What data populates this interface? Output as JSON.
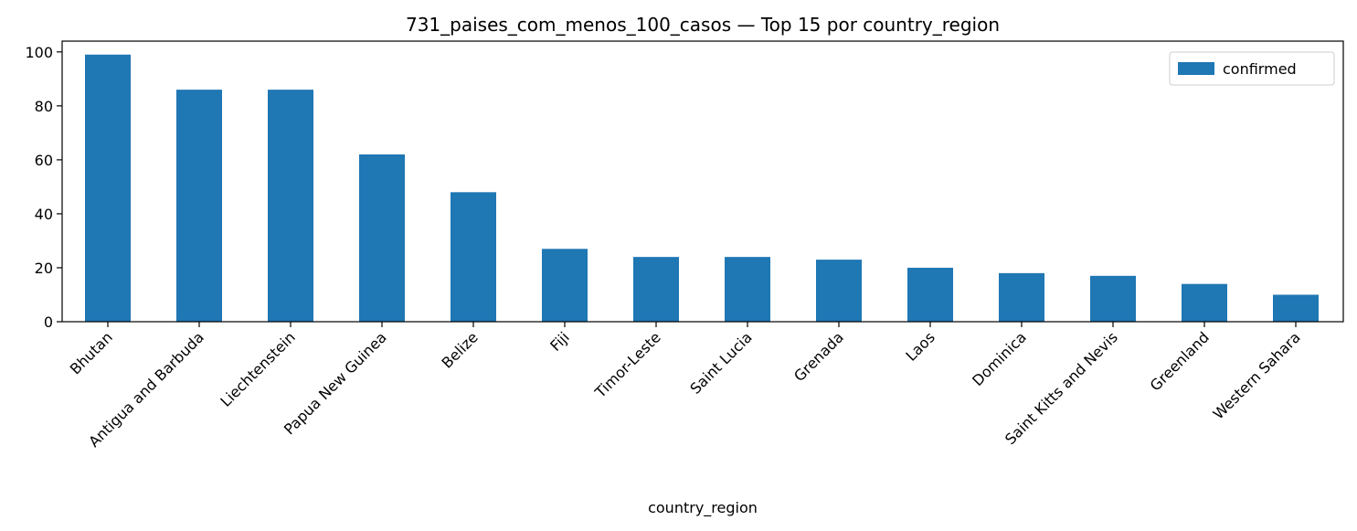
{
  "chart_data": {
    "type": "bar",
    "title": "731_paises_com_menos_100_casos — Top 15 por country_region",
    "xlabel": "country_region",
    "ylabel": "",
    "ylim": [
      0,
      104
    ],
    "yticks": [
      0,
      20,
      40,
      60,
      80,
      100
    ],
    "categories": [
      "Bhutan",
      "Antigua and Barbuda",
      "Liechtenstein",
      "Papua New Guinea",
      "Belize",
      "Fiji",
      "Timor-Leste",
      "Saint Lucia",
      "Grenada",
      "Laos",
      "Dominica",
      "Saint Kitts and Nevis",
      "Greenland",
      "Western Sahara"
    ],
    "series": [
      {
        "name": "confirmed",
        "values": [
          99,
          86,
          86,
          62,
          48,
          27,
          24,
          24,
          23,
          20,
          18,
          17,
          14,
          10
        ],
        "color": "#1f77b4"
      }
    ],
    "legend": "top-right",
    "grid": false
  }
}
